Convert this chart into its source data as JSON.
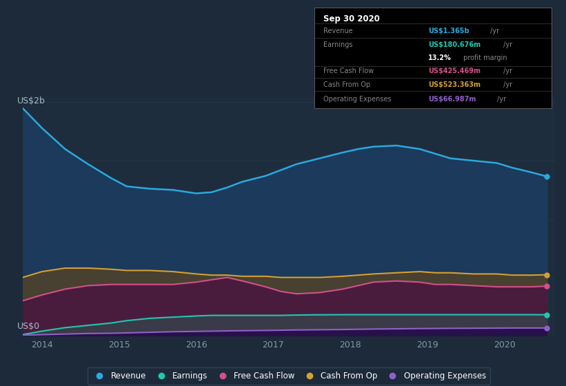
{
  "bg_color": "#1c2a3a",
  "plot_bg_color": "#1e2d3e",
  "ylabel": "US$2b",
  "y0label": "US$0",
  "years": [
    2013.75,
    2014.0,
    2014.3,
    2014.6,
    2014.9,
    2015.1,
    2015.4,
    2015.7,
    2016.0,
    2016.2,
    2016.4,
    2016.6,
    2016.9,
    2017.1,
    2017.3,
    2017.6,
    2017.9,
    2018.1,
    2018.3,
    2018.6,
    2018.9,
    2019.1,
    2019.3,
    2019.6,
    2019.9,
    2020.1,
    2020.35,
    2020.55
  ],
  "revenue": [
    1.95,
    1.78,
    1.6,
    1.47,
    1.35,
    1.28,
    1.26,
    1.25,
    1.22,
    1.23,
    1.27,
    1.32,
    1.37,
    1.42,
    1.47,
    1.52,
    1.57,
    1.6,
    1.62,
    1.63,
    1.6,
    1.56,
    1.52,
    1.5,
    1.48,
    1.44,
    1.4,
    1.365
  ],
  "cash_from_op": [
    0.5,
    0.55,
    0.58,
    0.58,
    0.57,
    0.56,
    0.56,
    0.55,
    0.53,
    0.52,
    0.52,
    0.51,
    0.51,
    0.5,
    0.5,
    0.5,
    0.51,
    0.52,
    0.53,
    0.54,
    0.55,
    0.54,
    0.54,
    0.53,
    0.53,
    0.52,
    0.52,
    0.523
  ],
  "free_cash_flow": [
    0.3,
    0.35,
    0.4,
    0.43,
    0.44,
    0.44,
    0.44,
    0.44,
    0.46,
    0.48,
    0.5,
    0.47,
    0.42,
    0.38,
    0.36,
    0.37,
    0.4,
    0.43,
    0.46,
    0.47,
    0.46,
    0.44,
    0.44,
    0.43,
    0.42,
    0.42,
    0.42,
    0.4255
  ],
  "earnings": [
    0.01,
    0.04,
    0.07,
    0.09,
    0.11,
    0.13,
    0.15,
    0.16,
    0.17,
    0.175,
    0.175,
    0.175,
    0.175,
    0.175,
    0.178,
    0.18,
    0.181,
    0.181,
    0.181,
    0.181,
    0.181,
    0.181,
    0.181,
    0.181,
    0.181,
    0.181,
    0.181,
    0.1807
  ],
  "operating_expenses": [
    0.005,
    0.01,
    0.015,
    0.02,
    0.022,
    0.025,
    0.03,
    0.035,
    0.038,
    0.04,
    0.042,
    0.044,
    0.046,
    0.048,
    0.05,
    0.052,
    0.054,
    0.056,
    0.058,
    0.06,
    0.062,
    0.063,
    0.064,
    0.065,
    0.066,
    0.067,
    0.067,
    0.067
  ],
  "revenue_line_color": "#29aadf",
  "revenue_fill_color": "#1b3a5c",
  "cash_from_op_line_color": "#d4a030",
  "cash_from_op_fill_color": "#4a4020",
  "free_cash_flow_line_color": "#d4508a",
  "free_cash_flow_fill_color": "#5a2050",
  "earnings_line_color": "#20c8b0",
  "earnings_fill_color": "#3a3a4a",
  "op_expenses_line_color": "#9060c8",
  "op_expenses_fill_color": "#30104a",
  "xticks": [
    2014,
    2015,
    2016,
    2017,
    2018,
    2019,
    2020
  ],
  "xlim": [
    2013.75,
    2020.65
  ],
  "ylim": [
    0,
    2.05
  ],
  "grid_color": "#2a3a4a",
  "legend_bg": "#1c2a3a",
  "legend_border": "#3a4a5a",
  "info_box": {
    "title": "Sep 30 2020",
    "rows": [
      {
        "label": "Revenue",
        "value": "US$1.365b",
        "suffix": " /yr",
        "value_color": "#29aadf"
      },
      {
        "label": "Earnings",
        "value": "US$180.676m",
        "suffix": " /yr",
        "value_color": "#20c8b0"
      },
      {
        "label": "",
        "value": "13.2%",
        "suffix": " profit margin",
        "value_color": "#ffffff"
      },
      {
        "label": "Free Cash Flow",
        "value": "US$425.469m",
        "suffix": " /yr",
        "value_color": "#d4508a"
      },
      {
        "label": "Cash From Op",
        "value": "US$523.363m",
        "suffix": " /yr",
        "value_color": "#d4a030"
      },
      {
        "label": "Operating Expenses",
        "value": "US$66.987m",
        "suffix": " /yr",
        "value_color": "#9060c8"
      }
    ]
  }
}
